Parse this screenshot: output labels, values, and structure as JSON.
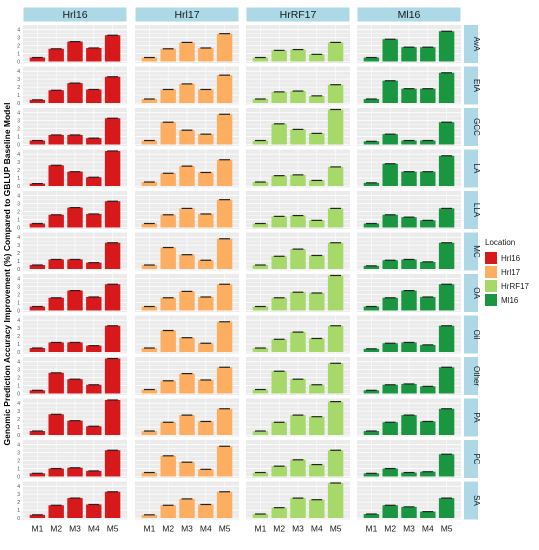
{
  "chart_data": {
    "type": "bar",
    "ylabel": "Genomic Prediction Accuracy Improvement (%) Compared to GBLUP Baseline Model",
    "ylim": [
      0,
      4.4
    ],
    "yticks": [
      "0",
      "1",
      "2",
      "3",
      "4"
    ],
    "categories": [
      "M1",
      "M2",
      "M3",
      "M4",
      "M5"
    ],
    "columns": [
      "Hrl16",
      "Hrl17",
      "HrRF17",
      "Ml16"
    ],
    "rows": [
      "AvA",
      "EtA",
      "GCC",
      "LA",
      "LLA",
      "MC",
      "OA",
      "Oil",
      "Other",
      "PA",
      "PC",
      "SA"
    ],
    "grid": true,
    "legend": {
      "title": "Location",
      "position": "right",
      "entries": [
        {
          "label": "Hrl16",
          "color": "#d7191c"
        },
        {
          "label": "Hrl17",
          "color": "#fdae61"
        },
        {
          "label": "HrRF17",
          "color": "#a6d96a"
        },
        {
          "label": "Ml16",
          "color": "#1a9641"
        }
      ]
    },
    "values": {
      "AvA": [
        [
          0.5,
          1.6,
          2.5,
          1.7,
          3.3
        ],
        [
          0.5,
          1.6,
          2.4,
          1.7,
          3.5
        ],
        [
          0.5,
          1.4,
          1.5,
          0.9,
          2.4
        ],
        [
          0.5,
          2.8,
          1.8,
          1.8,
          3.8
        ]
      ],
      "EtA": [
        [
          0.4,
          1.6,
          2.5,
          1.7,
          3.3
        ],
        [
          0.5,
          1.7,
          2.4,
          1.7,
          3.5
        ],
        [
          0.5,
          1.4,
          1.5,
          0.9,
          2.3
        ],
        [
          0.5,
          2.8,
          1.8,
          1.8,
          3.8
        ]
      ],
      "GCC": [
        [
          0.5,
          1.2,
          1.2,
          0.8,
          3.3
        ],
        [
          0.5,
          2.8,
          1.8,
          1.3,
          3.8
        ],
        [
          0.5,
          2.6,
          1.9,
          1.4,
          4.4
        ],
        [
          0.4,
          1.3,
          0.5,
          0.5,
          2.8
        ]
      ],
      "LA": [
        [
          0.3,
          2.6,
          1.8,
          1.1,
          4.4
        ],
        [
          0.5,
          1.6,
          2.5,
          1.7,
          3.3
        ],
        [
          0.5,
          1.3,
          1.4,
          0.7,
          2.4
        ],
        [
          0.4,
          2.8,
          1.8,
          1.8,
          3.8
        ]
      ],
      "LLA": [
        [
          0.5,
          1.6,
          2.5,
          1.7,
          3.3
        ],
        [
          0.5,
          1.6,
          2.4,
          1.7,
          3.5
        ],
        [
          0.5,
          1.4,
          1.5,
          0.9,
          2.4
        ],
        [
          0.5,
          1.6,
          1.3,
          0.9,
          2.4
        ]
      ],
      "MC": [
        [
          0.5,
          1.2,
          1.2,
          0.8,
          3.3
        ],
        [
          0.5,
          2.7,
          1.8,
          1.1,
          3.8
        ],
        [
          0.5,
          1.6,
          2.5,
          1.7,
          3.3
        ],
        [
          0.4,
          1.1,
          1.2,
          0.9,
          3.3
        ]
      ],
      "OA": [
        [
          0.5,
          1.6,
          2.5,
          1.7,
          3.3
        ],
        [
          0.5,
          1.6,
          2.4,
          1.7,
          3.3
        ],
        [
          0.5,
          1.6,
          2.3,
          2.2,
          4.4
        ],
        [
          0.5,
          1.6,
          2.5,
          1.7,
          3.3
        ]
      ],
      "Oil": [
        [
          0.5,
          1.2,
          1.2,
          0.8,
          3.3
        ],
        [
          0.5,
          2.7,
          1.8,
          1.1,
          3.8
        ],
        [
          0.5,
          1.6,
          2.5,
          1.7,
          3.3
        ],
        [
          0.4,
          1.1,
          1.2,
          0.9,
          3.3
        ]
      ],
      "Other": [
        [
          0.4,
          2.6,
          1.8,
          1.1,
          4.4
        ],
        [
          0.5,
          1.6,
          2.5,
          1.7,
          3.3
        ],
        [
          0.5,
          2.8,
          1.8,
          1.1,
          3.8
        ],
        [
          0.4,
          1.1,
          1.2,
          0.9,
          3.3
        ]
      ],
      "PA": [
        [
          0.5,
          2.6,
          1.8,
          1.1,
          4.4
        ],
        [
          0.5,
          1.6,
          2.5,
          1.7,
          3.3
        ],
        [
          0.5,
          1.6,
          2.5,
          2.3,
          4.2
        ],
        [
          0.5,
          1.6,
          2.5,
          1.7,
          3.3
        ]
      ],
      "PC": [
        [
          0.4,
          1.0,
          1.1,
          0.7,
          3.3
        ],
        [
          0.5,
          2.6,
          1.8,
          0.9,
          3.8
        ],
        [
          0.5,
          1.3,
          2.1,
          1.5,
          3.3
        ],
        [
          0.4,
          1.0,
          0.5,
          0.6,
          2.8
        ]
      ],
      "SA": [
        [
          0.4,
          1.6,
          2.5,
          1.7,
          3.3
        ],
        [
          0.4,
          1.6,
          2.4,
          1.7,
          3.3
        ],
        [
          0.5,
          1.3,
          2.5,
          2.3,
          4.4
        ],
        [
          0.5,
          1.6,
          1.4,
          0.8,
          2.5
        ]
      ]
    }
  }
}
